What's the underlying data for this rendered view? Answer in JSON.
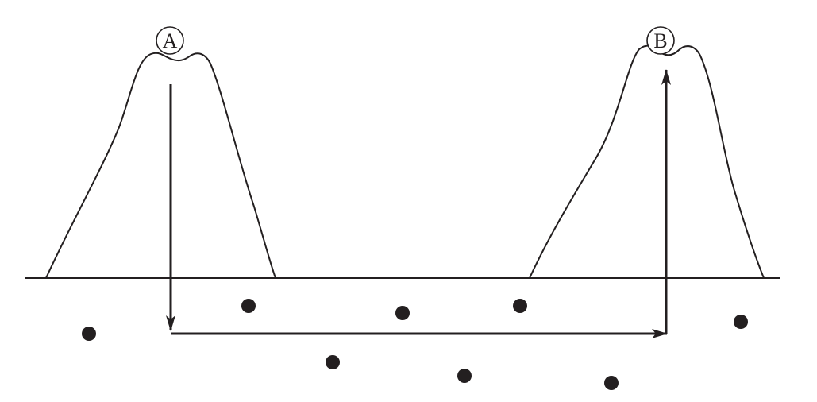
{
  "labels": {
    "peak_a": "A",
    "peak_b": "B"
  },
  "colors": {
    "stroke": "#231f20",
    "background": "#ffffff"
  }
}
